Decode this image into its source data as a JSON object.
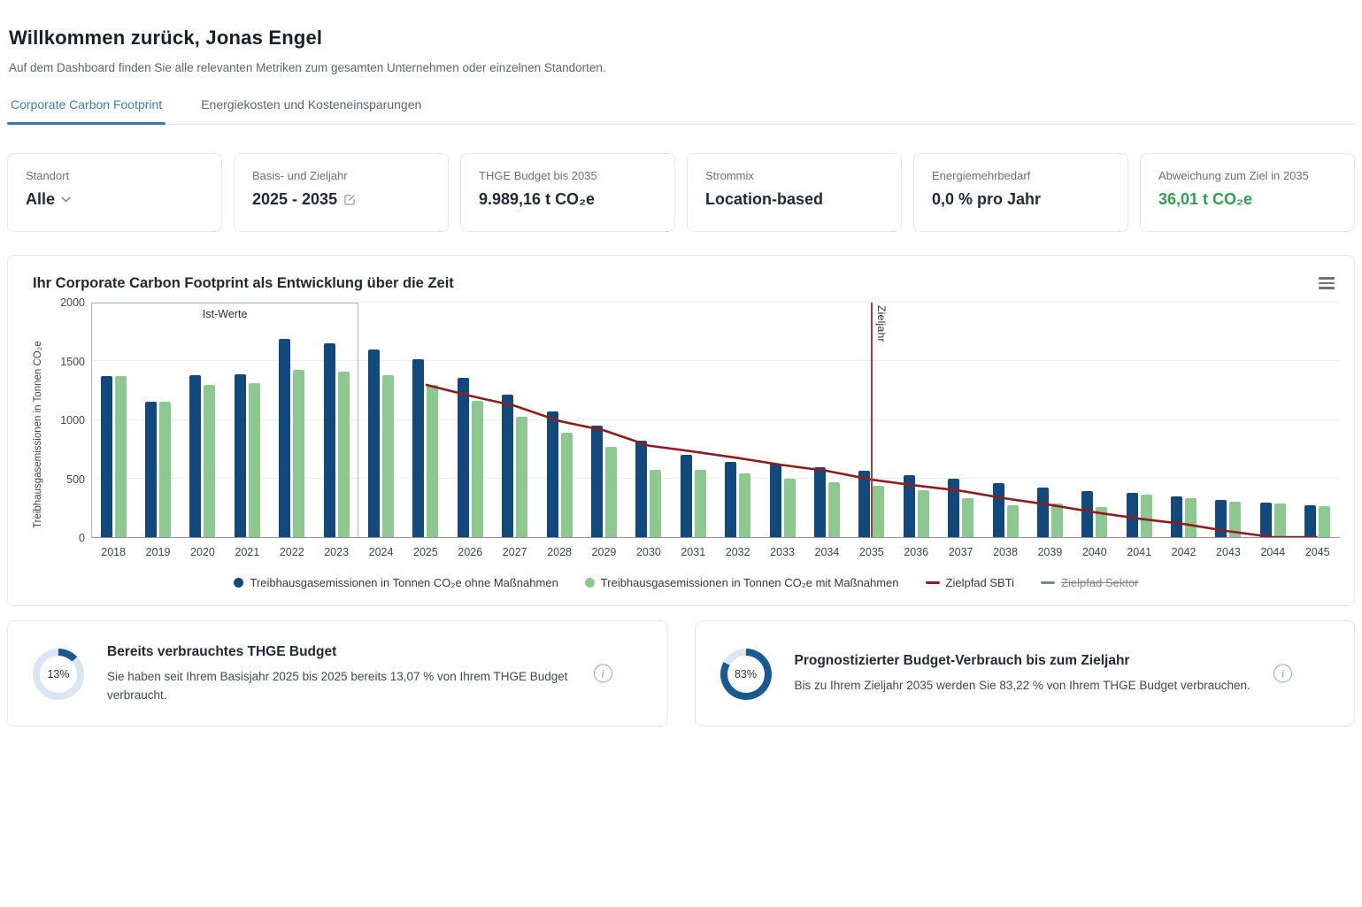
{
  "header": {
    "title": "Willkommen zurück, Jonas Engel",
    "subtitle": "Auf dem Dashboard finden Sie alle relevanten Metriken zum gesamten Unternehmen oder einzelnen Standorten."
  },
  "tabs": [
    {
      "label": "Corporate Carbon Footprint",
      "active": true
    },
    {
      "label": "Energiekosten und Kosteneinsparungen",
      "active": false
    }
  ],
  "metrics": [
    {
      "label": "Standort",
      "value": "Alle",
      "control": "dropdown"
    },
    {
      "label": "Basis- und Zieljahr",
      "value": "2025 - 2035",
      "control": "edit"
    },
    {
      "label": "THGE Budget bis 2035",
      "value": "9.989,16 t CO₂e"
    },
    {
      "label": "Strommix",
      "value": "Location-based"
    },
    {
      "label": "Energiemehrbedarf",
      "value": "0,0 % pro Jahr"
    },
    {
      "label": "Abweichung zum Ziel in 2035",
      "value": "36,01 t CO₂e",
      "value_color": "#2f9e4f"
    }
  ],
  "chart": {
    "title": "Ihr Corporate Carbon Footprint als Entwicklung über die Zeit"
  },
  "chart_data": {
    "type": "bar",
    "title": "Ihr Corporate Carbon Footprint als Entwicklung über die Zeit",
    "xlabel": "",
    "ylabel": "Treibhausgasemissionen in Tonnen CO₂e",
    "ylim": [
      0,
      2000
    ],
    "yticks": [
      0,
      500,
      1000,
      1500,
      2000
    ],
    "grid": true,
    "legend_position": "bottom",
    "categories": [
      "2018",
      "2019",
      "2020",
      "2021",
      "2022",
      "2023",
      "2024",
      "2025",
      "2026",
      "2027",
      "2028",
      "2029",
      "2030",
      "2031",
      "2032",
      "2033",
      "2034",
      "2035",
      "2036",
      "2037",
      "2038",
      "2039",
      "2040",
      "2041",
      "2042",
      "2043",
      "2044",
      "2045"
    ],
    "series": [
      {
        "name": "Treibhausgasemissionen in Tonnen CO₂e ohne Maßnahmen",
        "type": "bar",
        "color": "#12497c",
        "values": [
          1370,
          1155,
          1380,
          1390,
          1690,
          1650,
          1600,
          1520,
          1360,
          1215,
          1075,
          950,
          820,
          700,
          640,
          625,
          595,
          565,
          525,
          500,
          460,
          420,
          395,
          375,
          345,
          320,
          295,
          275
        ]
      },
      {
        "name": "Treibhausgasemissionen in Tonnen CO₂e mit Maßnahmen",
        "type": "bar",
        "color": "#8cc88f",
        "values": [
          1370,
          1155,
          1300,
          1310,
          1430,
          1410,
          1385,
          1300,
          1160,
          1030,
          890,
          770,
          575,
          570,
          540,
          495,
          465,
          435,
          400,
          335,
          270,
          285,
          255,
          360,
          330,
          305,
          285,
          265
        ]
      },
      {
        "name": "Zielpfad SBTi",
        "type": "line",
        "color": "#8e1e1e",
        "values": [
          null,
          null,
          null,
          null,
          null,
          null,
          null,
          1300,
          1205,
          1120,
          990,
          910,
          780,
          730,
          675,
          615,
          565,
          490,
          440,
          395,
          330,
          275,
          212,
          157,
          112,
          50,
          0,
          0
        ]
      },
      {
        "name": "Zielpfad Sektor",
        "type": "line",
        "color": "#7d868d",
        "hidden": true,
        "values": []
      }
    ],
    "annotations": [
      {
        "type": "box",
        "label": "Ist-Werte",
        "from": "2018",
        "to": "2023"
      },
      {
        "type": "vline",
        "label": "Zieljahr",
        "at": "2035",
        "color": "#a83b3b"
      }
    ]
  },
  "budget_cards": [
    {
      "percent": 13,
      "percent_label": "13%",
      "title": "Bereits verbrauchtes THGE Budget",
      "description": "Sie haben seit Ihrem Basisjahr 2025 bis 2025 bereits 13,07 % von Ihrem THGE Budget verbraucht."
    },
    {
      "percent": 83,
      "percent_label": "83%",
      "title": "Prognostizierter Budget-Verbrauch bis zum Zieljahr",
      "description": "Bis zu Ihrem Zieljahr 2035 werden Sie 83,22 % von Ihrem THGE Budget verbrauchen."
    }
  ],
  "colors": {
    "accent_blue": "#3d7eb5",
    "positive_green": "#2f9e4f",
    "bar_blue": "#12497c",
    "bar_green": "#8cc88f",
    "sbti_red": "#8e1e1e",
    "zieljahr_red": "#a83b3b",
    "donut_fill": "#1a5a94",
    "donut_track": "#d9e6f2"
  }
}
